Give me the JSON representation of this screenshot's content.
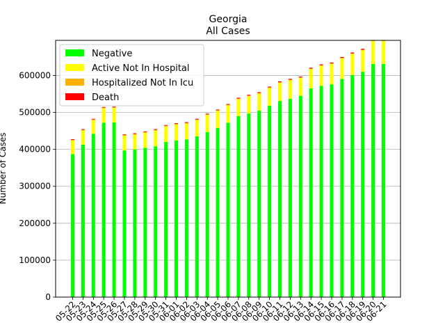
{
  "chart_data": {
    "type": "bar",
    "stacked": true,
    "title": "Georgia",
    "subtitle": "All Cases",
    "xlabel": "",
    "ylabel": "Number of Cases",
    "ylim": [
      0,
      695000
    ],
    "yticks": [
      0,
      100000,
      200000,
      300000,
      400000,
      500000,
      600000
    ],
    "grid": "horizontal",
    "legend_position": "top-left",
    "categories": [
      "05-22",
      "05-23",
      "05-24",
      "05-25",
      "05-26",
      "05-27",
      "05-28",
      "05-29",
      "05-30",
      "05-31",
      "06-01",
      "06-02",
      "06-03",
      "06-04",
      "06-05",
      "06-06",
      "06-07",
      "06-08",
      "06-09",
      "06-10",
      "06-11",
      "06-12",
      "06-13",
      "06-14",
      "06-15",
      "06-16",
      "06-17",
      "06-18",
      "06-19",
      "06-20",
      "06-21"
    ],
    "series": [
      {
        "name": "Negative",
        "color": "#00ff00",
        "values": [
          387000,
          413000,
          442000,
          472000,
          473000,
          397000,
          400000,
          404000,
          408000,
          420000,
          424000,
          427000,
          435000,
          447000,
          458000,
          472000,
          490000,
          497000,
          505000,
          518000,
          531000,
          537000,
          545000,
          565000,
          572000,
          576000,
          591000,
          601000,
          610000,
          631000,
          631000
        ]
      },
      {
        "name": "Active Not In Hospital",
        "color": "#ffff00",
        "values": [
          37000,
          38000,
          37000,
          39000,
          39000,
          40000,
          40000,
          41000,
          43000,
          42000,
          43000,
          43000,
          44000,
          46000,
          46000,
          47000,
          46000,
          47000,
          46000,
          48000,
          49000,
          50000,
          48000,
          52000,
          54000,
          55000,
          55000,
          57000,
          58000,
          62000,
          62000
        ]
      },
      {
        "name": "Hospitalized Not In Icu",
        "color": "#ffb000",
        "values": [
          1800,
          1800,
          1800,
          1800,
          1800,
          1700,
          1700,
          1700,
          1700,
          1700,
          1700,
          1700,
          1700,
          1600,
          1600,
          1600,
          1600,
          1600,
          1600,
          1600,
          1600,
          1600,
          1600,
          1600,
          1600,
          1600,
          1600,
          1600,
          1600,
          1600,
          1600
        ]
      },
      {
        "name": "Death",
        "color": "#ff0000",
        "values": [
          1800,
          1800,
          1800,
          1850,
          1850,
          1850,
          1900,
          1900,
          1950,
          1950,
          2000,
          2000,
          2050,
          2050,
          2100,
          2100,
          2150,
          2150,
          2200,
          2200,
          2250,
          2250,
          2300,
          2300,
          2350,
          2400,
          2450,
          2500,
          2550,
          2600,
          2650
        ]
      }
    ]
  }
}
